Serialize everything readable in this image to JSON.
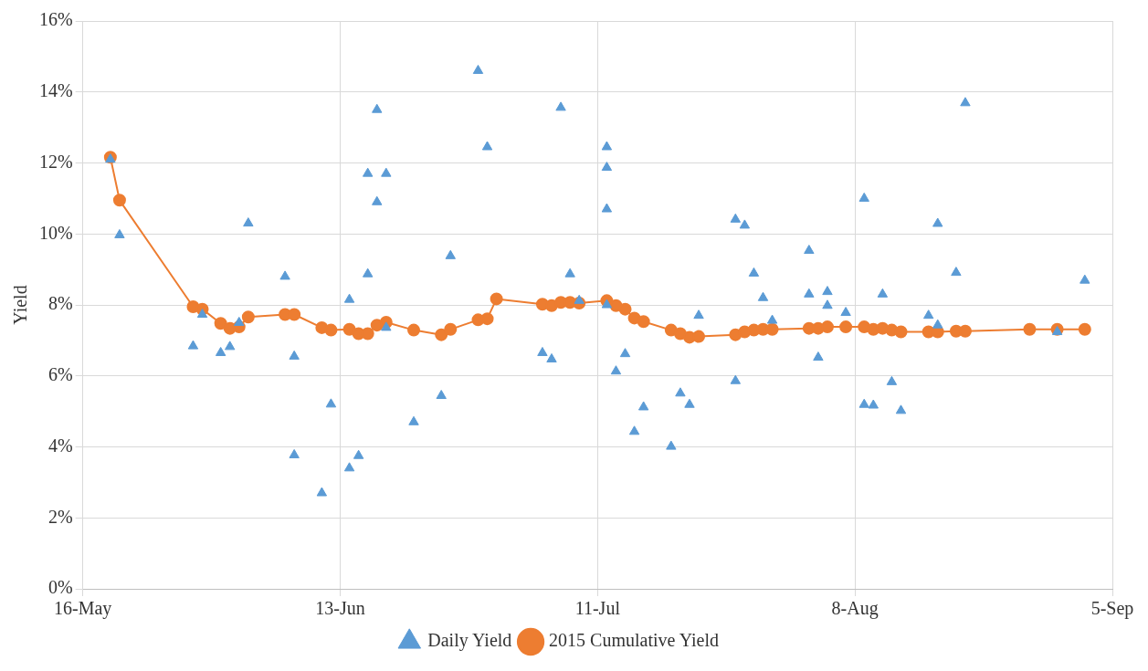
{
  "chart_data": {
    "type": "line",
    "ylabel": "Yield",
    "xlim": [
      "2015-05-16",
      "2015-09-05"
    ],
    "xticks": [
      {
        "value": "2015-05-16",
        "label": "16-May"
      },
      {
        "value": "2015-06-13",
        "label": "13-Jun"
      },
      {
        "value": "2015-07-11",
        "label": "11-Jul"
      },
      {
        "value": "2015-08-08",
        "label": "8-Aug"
      },
      {
        "value": "2015-09-05",
        "label": "5-Sep"
      }
    ],
    "ylim": [
      0,
      16
    ],
    "yticks": [
      {
        "value": 0,
        "label": "0%"
      },
      {
        "value": 2,
        "label": "2%"
      },
      {
        "value": 4,
        "label": "4%"
      },
      {
        "value": 6,
        "label": "6%"
      },
      {
        "value": 8,
        "label": "8%"
      },
      {
        "value": 10,
        "label": "10%"
      },
      {
        "value": 12,
        "label": "12%"
      },
      {
        "value": 14,
        "label": "14%"
      },
      {
        "value": 16,
        "label": "16%"
      }
    ],
    "grid": true,
    "legend": "bottom",
    "series": [
      {
        "name": "Daily Yield",
        "type": "scatter",
        "marker": "triangle",
        "color": "#5b9bd5",
        "x": [
          "2015-05-19",
          "2015-05-20",
          "2015-05-28",
          "2015-05-29",
          "2015-05-31",
          "2015-06-01",
          "2015-06-02",
          "2015-06-03",
          "2015-06-07",
          "2015-06-08",
          "2015-06-08",
          "2015-06-11",
          "2015-06-12",
          "2015-06-14",
          "2015-06-14",
          "2015-06-15",
          "2015-06-16",
          "2015-06-16",
          "2015-06-17",
          "2015-06-17",
          "2015-06-18",
          "2015-06-18",
          "2015-06-21",
          "2015-06-24",
          "2015-06-25",
          "2015-06-28",
          "2015-06-29",
          "2015-07-05",
          "2015-07-06",
          "2015-07-07",
          "2015-07-08",
          "2015-07-09",
          "2015-07-12",
          "2015-07-12",
          "2015-07-12",
          "2015-07-12",
          "2015-07-13",
          "2015-07-14",
          "2015-07-15",
          "2015-07-16",
          "2015-07-19",
          "2015-07-20",
          "2015-07-21",
          "2015-07-22",
          "2015-07-26",
          "2015-07-26",
          "2015-07-27",
          "2015-07-28",
          "2015-07-29",
          "2015-07-30",
          "2015-08-03",
          "2015-08-03",
          "2015-08-04",
          "2015-08-05",
          "2015-08-05",
          "2015-08-07",
          "2015-08-09",
          "2015-08-09",
          "2015-08-10",
          "2015-08-11",
          "2015-08-12",
          "2015-08-13",
          "2015-08-16",
          "2015-08-17",
          "2015-08-17",
          "2015-08-19",
          "2015-08-20",
          "2015-08-30",
          "2015-09-02"
        ],
        "values": [
          12.1,
          9.97,
          6.84,
          7.73,
          6.65,
          6.82,
          7.5,
          10.3,
          8.8,
          3.77,
          6.55,
          2.7,
          5.2,
          3.4,
          8.15,
          3.75,
          11.7,
          8.87,
          13.5,
          10.9,
          11.7,
          7.36,
          4.7,
          5.44,
          9.38,
          14.6,
          12.45,
          6.65,
          6.47,
          13.56,
          8.87,
          8.12,
          12.45,
          11.87,
          10.7,
          8.0,
          6.13,
          6.62,
          4.43,
          5.12,
          4.01,
          5.51,
          5.19,
          7.7,
          5.86,
          10.41,
          10.24,
          8.89,
          8.2,
          7.56,
          9.53,
          8.3,
          6.52,
          8.37,
          7.98,
          7.78,
          11.0,
          5.19,
          5.17,
          8.3,
          5.83,
          5.02,
          7.7,
          7.43,
          10.29,
          8.91,
          13.69,
          7.24,
          8.69
        ]
      },
      {
        "name": "2015 Cumulative Yield",
        "type": "line",
        "marker": "circle",
        "color": "#ed7d31",
        "x": [
          "2015-05-19",
          "2015-05-20",
          "2015-05-28",
          "2015-05-29",
          "2015-05-31",
          "2015-06-01",
          "2015-06-02",
          "2015-06-03",
          "2015-06-07",
          "2015-06-08",
          "2015-06-11",
          "2015-06-12",
          "2015-06-14",
          "2015-06-15",
          "2015-06-16",
          "2015-06-17",
          "2015-06-18",
          "2015-06-21",
          "2015-06-24",
          "2015-06-25",
          "2015-06-28",
          "2015-06-29",
          "2015-06-30",
          "2015-07-05",
          "2015-07-06",
          "2015-07-07",
          "2015-07-08",
          "2015-07-09",
          "2015-07-12",
          "2015-07-13",
          "2015-07-14",
          "2015-07-15",
          "2015-07-16",
          "2015-07-19",
          "2015-07-20",
          "2015-07-21",
          "2015-07-22",
          "2015-07-26",
          "2015-07-27",
          "2015-07-28",
          "2015-07-29",
          "2015-07-30",
          "2015-08-03",
          "2015-08-04",
          "2015-08-05",
          "2015-08-07",
          "2015-08-09",
          "2015-08-10",
          "2015-08-11",
          "2015-08-12",
          "2015-08-13",
          "2015-08-16",
          "2015-08-17",
          "2015-08-19",
          "2015-08-20",
          "2015-08-27",
          "2015-08-30",
          "2015-09-02"
        ],
        "values": [
          12.16,
          10.95,
          7.95,
          7.88,
          7.48,
          7.34,
          7.38,
          7.66,
          7.73,
          7.73,
          7.36,
          7.29,
          7.31,
          7.19,
          7.19,
          7.43,
          7.51,
          7.29,
          7.16,
          7.31,
          7.58,
          7.61,
          8.17,
          8.02,
          7.98,
          8.07,
          8.07,
          8.05,
          8.12,
          7.98,
          7.88,
          7.63,
          7.53,
          7.29,
          7.19,
          7.09,
          7.11,
          7.16,
          7.24,
          7.29,
          7.31,
          7.31,
          7.34,
          7.34,
          7.38,
          7.38,
          7.38,
          7.31,
          7.34,
          7.29,
          7.24,
          7.24,
          7.24,
          7.26,
          7.26,
          7.31,
          7.31,
          7.31
        ]
      }
    ]
  }
}
